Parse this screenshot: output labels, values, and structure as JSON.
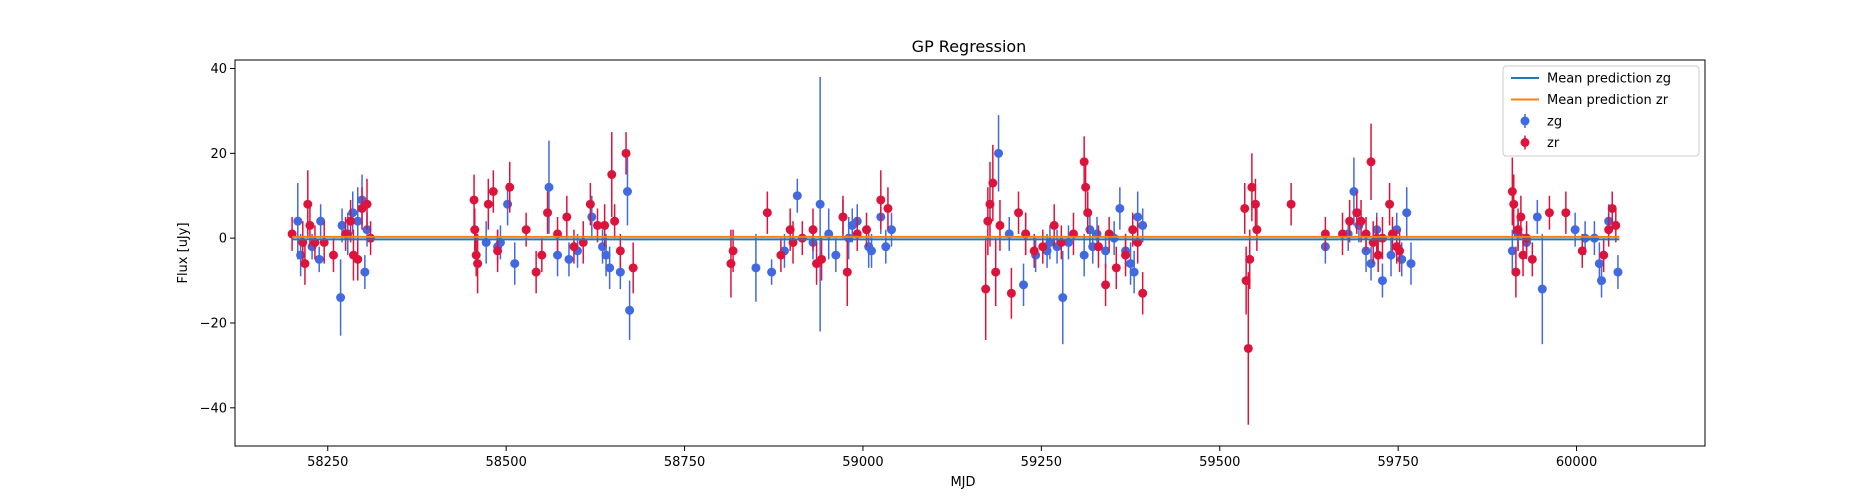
{
  "chart_data": {
    "type": "scatter",
    "title": "GP Regression",
    "xlabel": "MJD",
    "ylabel": "Flux [uJy]",
    "xlim": [
      58120,
      60180
    ],
    "ylim": [
      -49,
      42
    ],
    "xticks": [
      58250,
      58500,
      58750,
      59000,
      59250,
      59500,
      59750,
      60000
    ],
    "yticks": [
      -40,
      -20,
      0,
      20,
      40
    ],
    "grid": false,
    "legend_position": "top-right",
    "lines": [
      {
        "name": "Mean prediction zg",
        "color": "#1f77b4",
        "x": [
          58200,
          60060
        ],
        "y": [
          -0.3,
          -0.3
        ]
      },
      {
        "name": "Mean prediction zr",
        "color": "#ff7f0e",
        "x": [
          58200,
          60060
        ],
        "y": [
          0.3,
          0.3
        ]
      }
    ],
    "series": [
      {
        "name": "zg",
        "color": "#4169e1",
        "points": [
          [
            58208,
            4,
            9
          ],
          [
            58212,
            -4,
            5
          ],
          [
            58228,
            -2,
            3
          ],
          [
            58238,
            -5,
            3
          ],
          [
            58240,
            4,
            4
          ],
          [
            58268,
            -14,
            9
          ],
          [
            58270,
            3,
            4
          ],
          [
            58278,
            1,
            5
          ],
          [
            58285,
            6,
            5
          ],
          [
            58292,
            4,
            8
          ],
          [
            58298,
            9,
            6
          ],
          [
            58302,
            -8,
            4
          ],
          [
            58305,
            2,
            4
          ],
          [
            58472,
            -1,
            5
          ],
          [
            58488,
            -2,
            4
          ],
          [
            58492,
            -1,
            4
          ],
          [
            58502,
            8,
            5
          ],
          [
            58512,
            -6,
            5
          ],
          [
            58560,
            12,
            11
          ],
          [
            58572,
            -4,
            5
          ],
          [
            58588,
            -5,
            4
          ],
          [
            58600,
            -3,
            4
          ],
          [
            58620,
            5,
            5
          ],
          [
            58635,
            -2,
            4
          ],
          [
            58640,
            -4,
            5
          ],
          [
            58645,
            -7,
            5
          ],
          [
            58660,
            -8,
            4
          ],
          [
            58670,
            11,
            8
          ],
          [
            58673,
            -17,
            7
          ],
          [
            58850,
            -7,
            8
          ],
          [
            58872,
            -8,
            3
          ],
          [
            58890,
            -3,
            4
          ],
          [
            58908,
            10,
            4
          ],
          [
            58930,
            -1,
            4
          ],
          [
            58940,
            8,
            30
          ],
          [
            58952,
            1,
            6
          ],
          [
            58962,
            -4,
            4
          ],
          [
            58972,
            5,
            4
          ],
          [
            58980,
            0,
            5
          ],
          [
            58985,
            3,
            4
          ],
          [
            58992,
            4,
            4
          ],
          [
            59008,
            -2,
            5
          ],
          [
            59012,
            -3,
            4
          ],
          [
            59025,
            5,
            4
          ],
          [
            59032,
            -2,
            4
          ],
          [
            59040,
            2,
            4
          ],
          [
            59190,
            20,
            9
          ],
          [
            59205,
            1,
            4
          ],
          [
            59225,
            -11,
            5
          ],
          [
            59228,
            1,
            5
          ],
          [
            59242,
            -4,
            4
          ],
          [
            59258,
            -3,
            4
          ],
          [
            59262,
            -1,
            4
          ],
          [
            59272,
            -2,
            4
          ],
          [
            59280,
            -14,
            11
          ],
          [
            59288,
            -1,
            4
          ],
          [
            59310,
            -4,
            5
          ],
          [
            59318,
            2,
            4
          ],
          [
            59322,
            -2,
            4
          ],
          [
            59328,
            1,
            4
          ],
          [
            59340,
            -3,
            4
          ],
          [
            59352,
            0,
            4
          ],
          [
            59360,
            7,
            5
          ],
          [
            59368,
            -3,
            4
          ],
          [
            59375,
            -6,
            5
          ],
          [
            59380,
            -8,
            5
          ],
          [
            59385,
            5,
            6
          ],
          [
            59392,
            3,
            4
          ],
          [
            59648,
            -2,
            4
          ],
          [
            59680,
            1,
            4
          ],
          [
            59688,
            11,
            8
          ],
          [
            59695,
            3,
            4
          ],
          [
            59705,
            -3,
            5
          ],
          [
            59712,
            -6,
            4
          ],
          [
            59720,
            2,
            4
          ],
          [
            59728,
            -10,
            4
          ],
          [
            59740,
            -4,
            5
          ],
          [
            59748,
            2,
            4
          ],
          [
            59755,
            -5,
            4
          ],
          [
            59762,
            6,
            6
          ],
          [
            59768,
            -6,
            5
          ],
          [
            59910,
            -3,
            5
          ],
          [
            59918,
            1,
            4
          ],
          [
            59930,
            -1,
            4
          ],
          [
            59945,
            5,
            4
          ],
          [
            59952,
            -12,
            13
          ],
          [
            59998,
            2,
            4
          ],
          [
            60012,
            0,
            4
          ],
          [
            60025,
            0,
            4
          ],
          [
            60032,
            -6,
            5
          ],
          [
            60035,
            -10,
            4
          ],
          [
            60045,
            4,
            4
          ],
          [
            60058,
            -8,
            4
          ]
        ]
      },
      {
        "name": "zr",
        "color": "#dc143c",
        "points": [
          [
            58200,
            1,
            4
          ],
          [
            58215,
            -1,
            5
          ],
          [
            58218,
            -6,
            5
          ],
          [
            58222,
            8,
            8
          ],
          [
            58225,
            3,
            5
          ],
          [
            58232,
            -1,
            4
          ],
          [
            58245,
            -1,
            5
          ],
          [
            58258,
            -4,
            4
          ],
          [
            58275,
            1,
            4
          ],
          [
            58282,
            4,
            5
          ],
          [
            58286,
            -4,
            6
          ],
          [
            58292,
            -5,
            5
          ],
          [
            58298,
            7,
            5
          ],
          [
            58305,
            8,
            6
          ],
          [
            58310,
            0,
            4
          ],
          [
            58455,
            9,
            6
          ],
          [
            58456,
            2,
            5
          ],
          [
            58458,
            -4,
            5
          ],
          [
            58460,
            -6,
            7
          ],
          [
            58475,
            8,
            6
          ],
          [
            58482,
            11,
            5
          ],
          [
            58488,
            -3,
            5
          ],
          [
            58505,
            12,
            6
          ],
          [
            58528,
            2,
            4
          ],
          [
            58542,
            -8,
            5
          ],
          [
            58550,
            -4,
            4
          ],
          [
            58558,
            6,
            5
          ],
          [
            58572,
            1,
            4
          ],
          [
            58585,
            5,
            5
          ],
          [
            58595,
            -2,
            4
          ],
          [
            58608,
            -1,
            5
          ],
          [
            58618,
            8,
            5
          ],
          [
            58628,
            3,
            4
          ],
          [
            58638,
            3,
            5
          ],
          [
            58648,
            15,
            10
          ],
          [
            58652,
            4,
            4
          ],
          [
            58660,
            -3,
            4
          ],
          [
            58668,
            20,
            5
          ],
          [
            58678,
            -7,
            6
          ],
          [
            58815,
            -6,
            8
          ],
          [
            58818,
            -3,
            5
          ],
          [
            58866,
            6,
            5
          ],
          [
            58885,
            -4,
            4
          ],
          [
            58898,
            2,
            5
          ],
          [
            58902,
            -1,
            5
          ],
          [
            58915,
            0,
            4
          ],
          [
            58930,
            2,
            5
          ],
          [
            58935,
            -6,
            5
          ],
          [
            58942,
            -5,
            5
          ],
          [
            58972,
            5,
            5
          ],
          [
            58978,
            -8,
            8
          ],
          [
            58992,
            1,
            4
          ],
          [
            59005,
            2,
            4
          ],
          [
            59025,
            9,
            7
          ],
          [
            59035,
            7,
            5
          ],
          [
            59172,
            -12,
            12
          ],
          [
            59175,
            4,
            8
          ],
          [
            59178,
            8,
            10
          ],
          [
            59182,
            13,
            9
          ],
          [
            59186,
            -8,
            8
          ],
          [
            59192,
            3,
            6
          ],
          [
            59208,
            -13,
            6
          ],
          [
            59218,
            6,
            5
          ],
          [
            59228,
            1,
            5
          ],
          [
            59240,
            -3,
            4
          ],
          [
            59252,
            -2,
            4
          ],
          [
            59268,
            3,
            5
          ],
          [
            59278,
            -1,
            4
          ],
          [
            59295,
            1,
            5
          ],
          [
            59310,
            18,
            6
          ],
          [
            59312,
            12,
            6
          ],
          [
            59315,
            6,
            5
          ],
          [
            59330,
            -2,
            5
          ],
          [
            59340,
            -11,
            5
          ],
          [
            59345,
            1,
            4
          ],
          [
            59355,
            -7,
            5
          ],
          [
            59368,
            -4,
            5
          ],
          [
            59378,
            2,
            4
          ],
          [
            59385,
            -1,
            5
          ],
          [
            59392,
            -13,
            5
          ],
          [
            59535,
            7,
            6
          ],
          [
            59537,
            -10,
            8
          ],
          [
            59540,
            -26,
            18
          ],
          [
            59542,
            -5,
            7
          ],
          [
            59545,
            12,
            8
          ],
          [
            59550,
            8,
            6
          ],
          [
            59552,
            2,
            5
          ],
          [
            59600,
            8,
            5
          ],
          [
            59648,
            1,
            4
          ],
          [
            59672,
            1,
            5
          ],
          [
            59682,
            4,
            5
          ],
          [
            59692,
            6,
            5
          ],
          [
            59698,
            4,
            5
          ],
          [
            59705,
            1,
            4
          ],
          [
            59712,
            18,
            9
          ],
          [
            59715,
            -1,
            5
          ],
          [
            59720,
            0,
            5
          ],
          [
            59722,
            -4,
            4
          ],
          [
            59728,
            0,
            5
          ],
          [
            59738,
            8,
            5
          ],
          [
            59742,
            1,
            4
          ],
          [
            59748,
            -2,
            4
          ],
          [
            59752,
            -3,
            5
          ],
          [
            59910,
            11,
            8
          ],
          [
            59912,
            8,
            7
          ],
          [
            59915,
            -8,
            6
          ],
          [
            59918,
            2,
            5
          ],
          [
            59922,
            5,
            5
          ],
          [
            59925,
            -4,
            5
          ],
          [
            59930,
            0,
            4
          ],
          [
            59938,
            -5,
            4
          ],
          [
            59962,
            6,
            4
          ],
          [
            59985,
            6,
            5
          ],
          [
            60008,
            -3,
            4
          ],
          [
            60038,
            -4,
            4
          ],
          [
            60045,
            2,
            4
          ],
          [
            60050,
            7,
            4
          ],
          [
            60055,
            3,
            4
          ]
        ]
      }
    ]
  }
}
